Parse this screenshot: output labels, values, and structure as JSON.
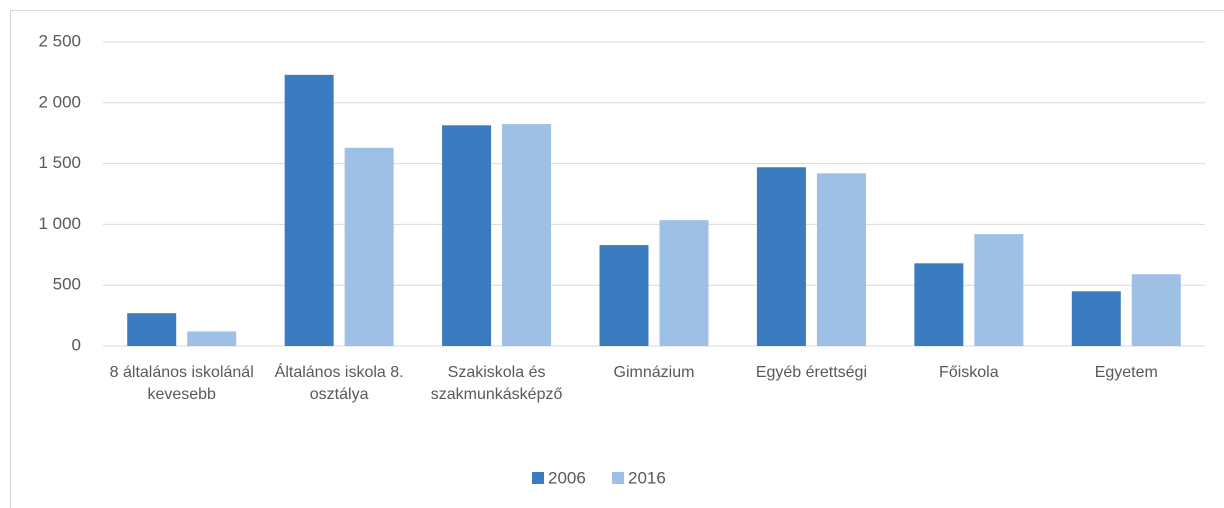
{
  "chart_data": {
    "type": "bar",
    "categories": [
      "8 általános iskolánál kevesebb",
      "Általános iskola 8. osztálya",
      "Szakiskola és szakmunkásképző",
      "Gimnázium",
      "Egyéb érettségi",
      "Főiskola",
      "Egyetem"
    ],
    "series": [
      {
        "name": "2006",
        "color": "#3b7bbf",
        "values": [
          270,
          2230,
          1815,
          830,
          1470,
          680,
          450
        ]
      },
      {
        "name": "2016",
        "color": "#9dc0e4",
        "values": [
          120,
          1630,
          1825,
          1035,
          1420,
          920,
          590
        ]
      }
    ],
    "ylim": [
      0,
      2500
    ],
    "yticks": [
      0,
      500,
      {
        "value": 1000,
        "label": "1 000"
      },
      {
        "value": 1500,
        "label": "1 500"
      },
      {
        "value": 2000,
        "label": "2 000"
      },
      {
        "value": 2500,
        "label": "2 500"
      }
    ],
    "grid": true,
    "legend": "bottom"
  }
}
